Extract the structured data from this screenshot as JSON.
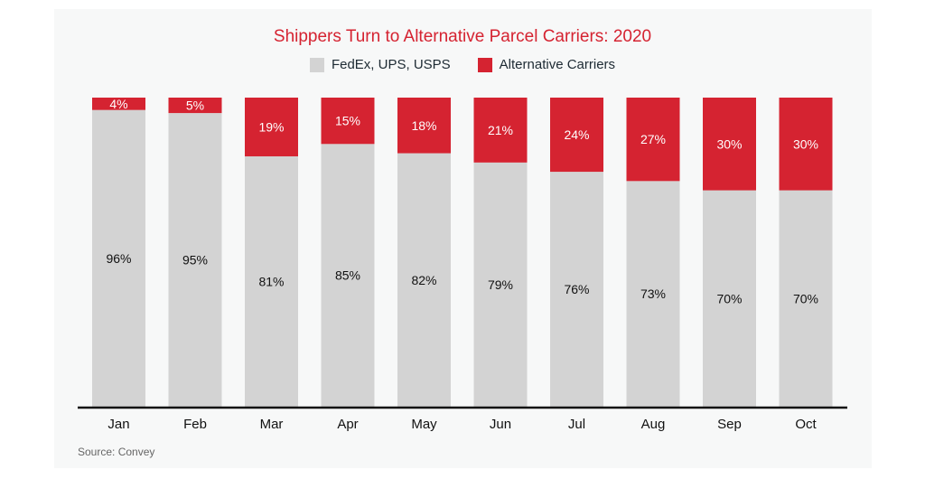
{
  "chart_data": {
    "type": "bar",
    "stacked": true,
    "title": "Shippers Turn to Alternative Parcel Carriers: 2020",
    "categories": [
      "Jan",
      "Feb",
      "Mar",
      "Apr",
      "May",
      "Jun",
      "Jul",
      "Aug",
      "Sep",
      "Oct"
    ],
    "series": [
      {
        "name": "FedEx, UPS, USPS",
        "color": "#d3d3d3",
        "values": [
          96,
          95,
          81,
          85,
          82,
          79,
          76,
          73,
          70,
          70
        ]
      },
      {
        "name": "Alternative Carriers",
        "color": "#d52331",
        "values": [
          4,
          5,
          19,
          15,
          18,
          21,
          24,
          27,
          30,
          30
        ]
      }
    ],
    "value_suffix": "%",
    "ylim": [
      0,
      100
    ],
    "grid": false,
    "legend_position": "top",
    "source": "Source: Convey"
  }
}
